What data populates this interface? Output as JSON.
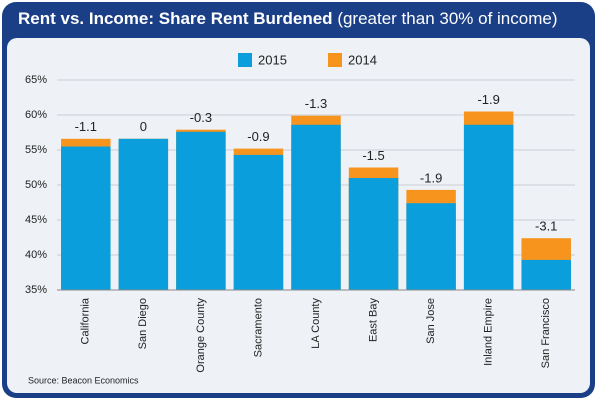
{
  "chart_data": {
    "type": "bar",
    "title": "Rent vs. Income: Share Rent Burdened",
    "subtitle": "(greater than 30% of income)",
    "source": "Source: Beacon Economics",
    "categories": [
      "California",
      "San Diego",
      "Orange County",
      "Sacramento",
      "LA County",
      "East Bay",
      "San Jose",
      "Inland Empire",
      "San Francisco"
    ],
    "series": [
      {
        "name": "2015",
        "color": "#0a9fdc",
        "values": [
          55.5,
          56.6,
          57.6,
          54.3,
          58.6,
          51.0,
          47.4,
          58.6,
          39.3
        ]
      },
      {
        "name": "2014",
        "color": "#f7941d",
        "values": [
          56.6,
          56.6,
          57.9,
          55.2,
          59.9,
          52.5,
          49.3,
          60.5,
          42.4
        ]
      }
    ],
    "change_labels": [
      "-1.1",
      "0",
      "-0.3",
      "-0.9",
      "-1.3",
      "-1.5",
      "-1.9",
      "-1.9",
      "-3.1"
    ],
    "ylim": [
      35,
      65
    ],
    "yticks": [
      {
        "value": 35,
        "label": "35%"
      },
      {
        "value": 40,
        "label": "40%"
      },
      {
        "value": 45,
        "label": "45%"
      },
      {
        "value": 50,
        "label": "50%"
      },
      {
        "value": 55,
        "label": "55%"
      },
      {
        "value": 60,
        "label": "60%"
      },
      {
        "value": 65,
        "label": "65%"
      }
    ],
    "grid": true
  }
}
